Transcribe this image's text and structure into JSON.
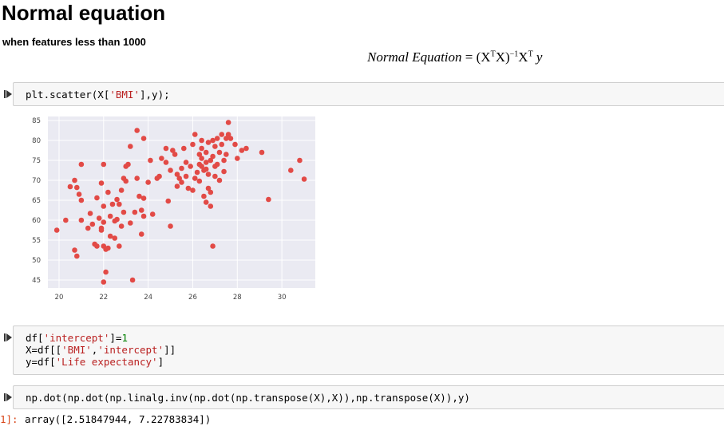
{
  "heading": "Normal equation",
  "subheading": "when features less than 1000",
  "equation": {
    "lhs": "Normal Equation",
    "rhs": "= (X",
    "sup_t1": "T",
    "mid": "X)",
    "sup_inv": "−1",
    "x2": "X",
    "sup_t2": "T",
    "y": "y"
  },
  "cells": [
    {
      "code": [
        [
          [
            "plt.scatter(X[",
            "plain"
          ],
          [
            "'BMI'",
            "str"
          ],
          [
            "],y);",
            "plain"
          ]
        ]
      ]
    },
    {
      "code": [
        [
          [
            "df[",
            "plain"
          ],
          [
            "'intercept'",
            "str"
          ],
          [
            "]=",
            "plain"
          ],
          [
            "1",
            "num"
          ]
        ],
        [
          [
            "X=df[[",
            "plain"
          ],
          [
            "'BMI'",
            "str"
          ],
          [
            ",",
            "plain"
          ],
          [
            "'intercept'",
            "str"
          ],
          [
            "]]",
            "plain"
          ]
        ],
        [
          [
            "y=df[",
            "plain"
          ],
          [
            "'Life expectancy'",
            "str"
          ],
          [
            "]",
            "plain"
          ]
        ]
      ]
    },
    {
      "code": [
        [
          [
            "np.dot(np.dot(np.linalg.inv(np.dot(np.transpose(X),X)),np.transpose(X)),y)",
            "plain"
          ]
        ]
      ]
    }
  ],
  "output": {
    "prompt": "1]:",
    "text": "array([2.51847944, 7.22783834])"
  },
  "colors": {
    "point": "#e24a46",
    "plot_bg": "#eaeaf2",
    "grid": "#ffffff",
    "code_bg": "#f7f7f7",
    "string": "#ba2121",
    "number": "#008000"
  },
  "chart_data": {
    "type": "scatter",
    "title": "",
    "xlabel": "",
    "ylabel": "",
    "xlim": [
      19.5,
      31.5
    ],
    "ylim": [
      43,
      86
    ],
    "xticks": [
      20,
      22,
      24,
      26,
      28,
      30
    ],
    "yticks": [
      45,
      50,
      55,
      60,
      65,
      70,
      75,
      80,
      85
    ],
    "grid": true,
    "points": [
      [
        19.9,
        57.5
      ],
      [
        20.3,
        60
      ],
      [
        20.5,
        68.4
      ],
      [
        20.7,
        70
      ],
      [
        20.8,
        68.2
      ],
      [
        20.9,
        66.5
      ],
      [
        21,
        65
      ],
      [
        20.7,
        52.5
      ],
      [
        20.8,
        51
      ],
      [
        21,
        60
      ],
      [
        21,
        74
      ],
      [
        21.3,
        58
      ],
      [
        21.4,
        61.7
      ],
      [
        21.5,
        59
      ],
      [
        21.6,
        54
      ],
      [
        21.7,
        65.6
      ],
      [
        21.7,
        53.5
      ],
      [
        21.8,
        60.5
      ],
      [
        21.9,
        58
      ],
      [
        21.9,
        57.5
      ],
      [
        21.9,
        69.3
      ],
      [
        22,
        59.5
      ],
      [
        22,
        63.5
      ],
      [
        22,
        74
      ],
      [
        22,
        53.5
      ],
      [
        22,
        44.5
      ],
      [
        22.1,
        47
      ],
      [
        22.1,
        52.7
      ],
      [
        22.2,
        67
      ],
      [
        22.2,
        53
      ],
      [
        22.3,
        56
      ],
      [
        22.3,
        61
      ],
      [
        22.4,
        64
      ],
      [
        22.5,
        55.5
      ],
      [
        22.5,
        59.8
      ],
      [
        22.6,
        60.2
      ],
      [
        22.6,
        65.2
      ],
      [
        22.7,
        53.5
      ],
      [
        22.8,
        67.5
      ],
      [
        22.7,
        64
      ],
      [
        22.8,
        58.5
      ],
      [
        22.9,
        62
      ],
      [
        22.9,
        70.5
      ],
      [
        23,
        69.8
      ],
      [
        23,
        73.5
      ],
      [
        23.1,
        74
      ],
      [
        23.2,
        59.3
      ],
      [
        23.3,
        45
      ],
      [
        23.4,
        62
      ],
      [
        23.5,
        70.5
      ],
      [
        23.5,
        82.5
      ],
      [
        23.6,
        66
      ],
      [
        23.7,
        62.5
      ],
      [
        23.7,
        56.5
      ],
      [
        23.8,
        61
      ],
      [
        23.8,
        80.5
      ],
      [
        23.8,
        65.5
      ],
      [
        23.2,
        78.5
      ],
      [
        24,
        69.5
      ],
      [
        24.1,
        75
      ],
      [
        24.2,
        61.5
      ],
      [
        24.4,
        70.5
      ],
      [
        24.5,
        71
      ],
      [
        24.6,
        75.5
      ],
      [
        24.8,
        74.5
      ],
      [
        24.8,
        78
      ],
      [
        24.9,
        64.8
      ],
      [
        25,
        72.5
      ],
      [
        25,
        58.5
      ],
      [
        25.1,
        77.5
      ],
      [
        25.2,
        76.5
      ],
      [
        25.3,
        71.5
      ],
      [
        25.3,
        68.5
      ],
      [
        25.4,
        70.5
      ],
      [
        25.5,
        69.5
      ],
      [
        25.5,
        73
      ],
      [
        25.6,
        78
      ],
      [
        25.7,
        74.5
      ],
      [
        25.7,
        71
      ],
      [
        25.8,
        68
      ],
      [
        25.9,
        73.5
      ],
      [
        26,
        79
      ],
      [
        26,
        67.5
      ],
      [
        26.1,
        81.5
      ],
      [
        26.1,
        70.5
      ],
      [
        26.2,
        72
      ],
      [
        26.3,
        74
      ],
      [
        26.3,
        76.5
      ],
      [
        26.3,
        69.8
      ],
      [
        26.4,
        80
      ],
      [
        26.4,
        78
      ],
      [
        26.4,
        75.5
      ],
      [
        26.4,
        73.5
      ],
      [
        26.5,
        72.5
      ],
      [
        26.5,
        66
      ],
      [
        26.6,
        77
      ],
      [
        26.6,
        74.5
      ],
      [
        26.6,
        72.8
      ],
      [
        26.6,
        64.5
      ],
      [
        26.7,
        79.5
      ],
      [
        26.7,
        71.5
      ],
      [
        26.7,
        68
      ],
      [
        26.8,
        75
      ],
      [
        26.8,
        67
      ],
      [
        26.8,
        63.5
      ],
      [
        26.9,
        80
      ],
      [
        26.9,
        76
      ],
      [
        26.9,
        53.5
      ],
      [
        27,
        73.5
      ],
      [
        27,
        78.5
      ],
      [
        27,
        71
      ],
      [
        27.1,
        80.5
      ],
      [
        27.1,
        74
      ],
      [
        27.2,
        70
      ],
      [
        27.2,
        77
      ],
      [
        27.3,
        81.5
      ],
      [
        27.3,
        79
      ],
      [
        27.4,
        75
      ],
      [
        27.4,
        72.2
      ],
      [
        27.5,
        80.5
      ],
      [
        27.5,
        76.5
      ],
      [
        27.6,
        84.5
      ],
      [
        27.6,
        81.5
      ],
      [
        27.7,
        80.5
      ],
      [
        27.9,
        79
      ],
      [
        28,
        75.5
      ],
      [
        28.2,
        77.5
      ],
      [
        28.4,
        78
      ],
      [
        29.1,
        77
      ],
      [
        29.4,
        65.2
      ],
      [
        30.4,
        72.5
      ],
      [
        30.8,
        75
      ],
      [
        31,
        70.3
      ]
    ]
  }
}
